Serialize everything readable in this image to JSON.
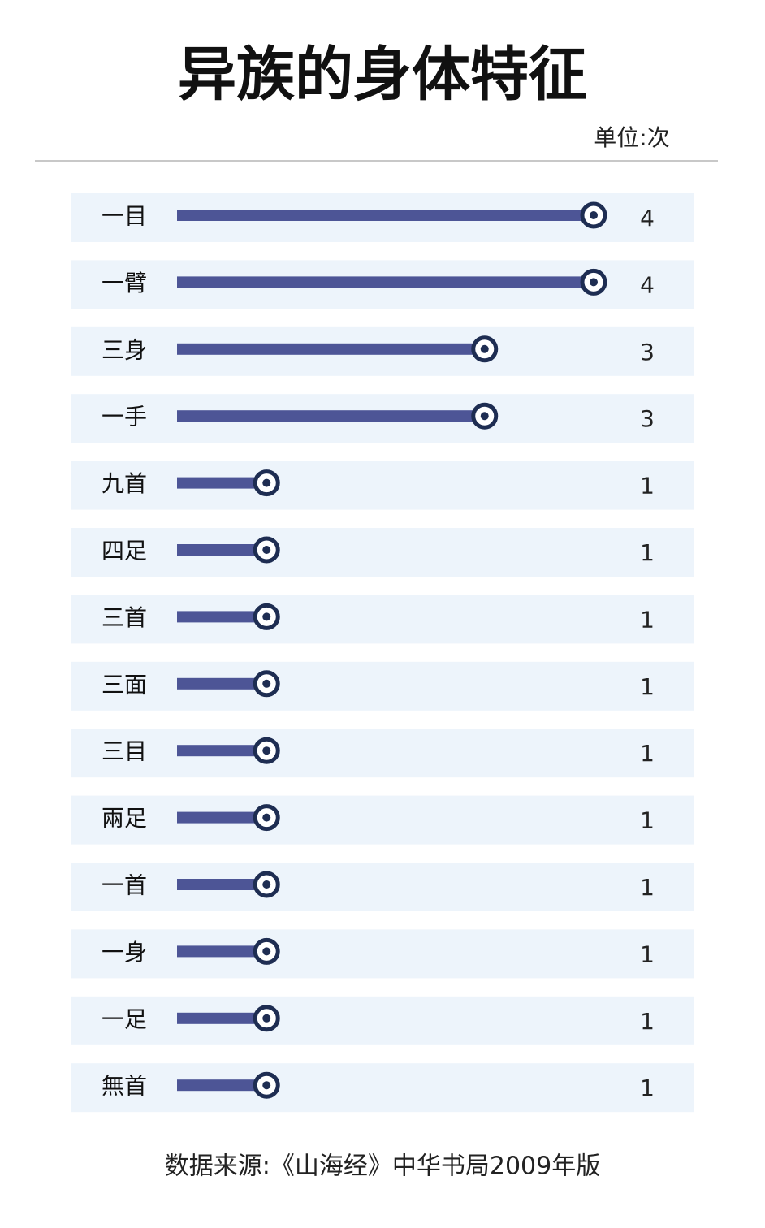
{
  "chart_data": {
    "type": "lollipop",
    "title": "异族的身体特征",
    "unit_label": "单位:次",
    "source": "数据来源:《山海经》中华书局2009年版",
    "categories": [
      "一目",
      "一臂",
      "三身",
      "一手",
      "九首",
      "四足",
      "三首",
      "三面",
      "三目",
      "兩足",
      "一首",
      "一身",
      "一足",
      "無首"
    ],
    "values": [
      4,
      4,
      3,
      3,
      1,
      1,
      1,
      1,
      1,
      1,
      1,
      1,
      1,
      1
    ],
    "color": "#4d5596",
    "marker_color": "#1e2d52",
    "row_color": "#edf4fb"
  }
}
